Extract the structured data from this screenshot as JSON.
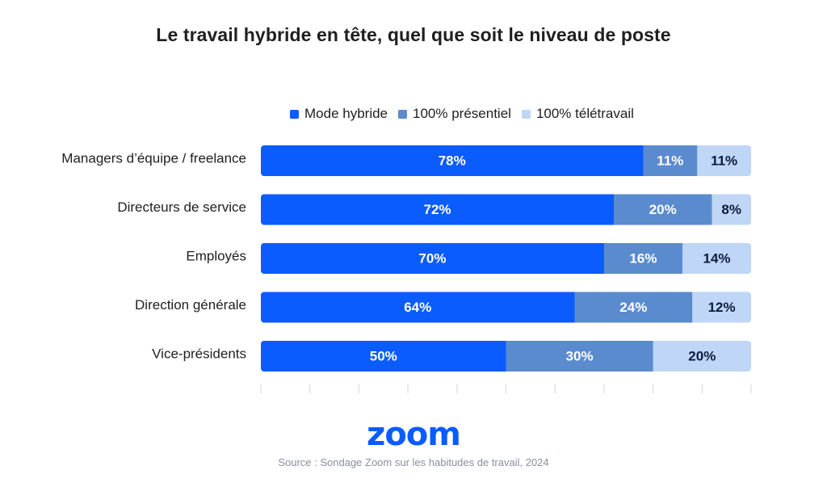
{
  "title": "Le travail hybride en tête, quel que soit le niveau de poste",
  "source": "Source : Sondage Zoom sur les habitudes de travail, 2024",
  "logo_text": "zoom",
  "chart_data": {
    "type": "bar",
    "orientation": "horizontal",
    "stacked": true,
    "title": "Le travail hybride en tête, quel que soit le niveau de poste",
    "xlabel": "",
    "ylabel": "",
    "xlim": [
      0,
      100
    ],
    "unit": "%",
    "legend_position": "top",
    "categories": [
      "Managers d’équipe / freelance",
      "Directeurs de service",
      "Employés",
      "Direction générale",
      "Vice-présidents"
    ],
    "series": [
      {
        "name": "Mode hybride",
        "color": "#0b5cff",
        "label_color": "#ffffff",
        "values": [
          78,
          72,
          70,
          64,
          50
        ]
      },
      {
        "name": "100% présentiel",
        "color": "#5b8bcf",
        "label_color": "#ffffff",
        "values": [
          11,
          20,
          16,
          24,
          30
        ]
      },
      {
        "name": "100% télétravail",
        "color": "#bfd6f6",
        "label_color": "#0d1b3d",
        "values": [
          11,
          8,
          14,
          12,
          20
        ]
      }
    ]
  }
}
